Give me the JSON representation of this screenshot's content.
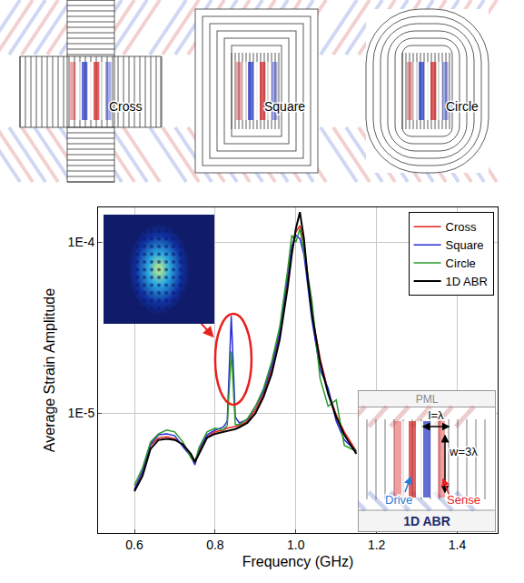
{
  "panels": [
    {
      "label": "Cross",
      "kind": "cross"
    },
    {
      "label": "Square",
      "kind": "square"
    },
    {
      "label": "Circle",
      "kind": "circle"
    }
  ],
  "chart_data": {
    "type": "line",
    "x_label": "Frequency (GHz)",
    "y_label": "Average Strain Amplitude",
    "log": "y",
    "grid": true,
    "legend": "top right",
    "xlim": [
      0.51,
      1.5
    ],
    "xticks": [
      0.6,
      0.8,
      {
        "value": 1,
        "label": "1.0"
      },
      1.2,
      1.4
    ],
    "ylim": [
      2e-06,
      0.00016
    ],
    "yticks": [
      {
        "value": 1e-05,
        "label": "1E-5"
      },
      {
        "value": 0.0001,
        "label": "1E-4"
      }
    ],
    "x": [
      0.6,
      0.62,
      0.64,
      0.66,
      0.68,
      0.7,
      0.72,
      0.74,
      0.75,
      0.76,
      0.78,
      0.8,
      0.82,
      0.83,
      0.84,
      0.85,
      0.86,
      0.88,
      0.9,
      0.92,
      0.94,
      0.96,
      0.98,
      0.99,
      1.0,
      1.01,
      1.02,
      1.03,
      1.04,
      1.06,
      1.08,
      1.1,
      1.12,
      1.15
    ],
    "series": [
      {
        "name": "Cross",
        "color": "#e8201e",
        "values": [
          3.6e-06,
          4.5e-06,
          6.5e-06,
          7.2e-06,
          7.3e-06,
          7.1e-06,
          6.5e-06,
          5.7e-06,
          5.3e-06,
          6e-06,
          7.3e-06,
          7.8e-06,
          8e-06,
          8.2e-06,
          8.3e-06,
          8.4e-06,
          8.5e-06,
          9e-06,
          1.05e-05,
          1.3e-05,
          1.8e-05,
          2.9e-05,
          6e-05,
          9e-05,
          0.000115,
          0.000125,
          0.0001,
          6e-05,
          3.8e-05,
          2.1e-05,
          1.35e-05,
          9.8e-06,
          7.8e-06,
          6e-06
        ]
      },
      {
        "name": "Square",
        "color": "#2b2bd8",
        "values": [
          3.6e-06,
          4.6e-06,
          6.6e-06,
          7.5e-06,
          7.6e-06,
          7.4e-06,
          6.4e-06,
          5.6e-06,
          5e-06,
          6.2e-06,
          7.5e-06,
          8e-06,
          8.3e-06,
          9e-06,
          3.7e-05,
          9.5e-06,
          8.8e-06,
          9.2e-06,
          1.1e-05,
          1.35e-05,
          1.9e-05,
          3e-05,
          6.5e-05,
          9.5e-05,
          0.00011,
          0.000105,
          8.5e-05,
          5.5e-05,
          3.5e-05,
          1.8e-05,
          1.4e-05,
          9e-06,
          7e-06,
          6e-06
        ]
      },
      {
        "name": "Circle",
        "color": "#2a9a2a",
        "values": [
          3.8e-06,
          4.8e-06,
          6.8e-06,
          7.6e-06,
          8e-06,
          7.8e-06,
          6.8e-06,
          5.5e-06,
          5.2e-06,
          6.3e-06,
          7.8e-06,
          8.2e-06,
          8e-06,
          8.5e-06,
          2.3e-05,
          8.6e-06,
          8.6e-06,
          9.3e-06,
          1.1e-05,
          1.4e-05,
          2e-05,
          3.2e-05,
          7e-05,
          0.00011,
          0.0001,
          0.00012,
          9e-05,
          6.5e-05,
          4.5e-05,
          1.6e-05,
          1.1e-05,
          1.2e-05,
          6.5e-06,
          6e-06
        ]
      },
      {
        "name": "1D ABR",
        "color": "#000000",
        "values": [
          3.5e-06,
          4.3e-06,
          6.2e-06,
          7e-06,
          7.1e-06,
          7e-06,
          6.6e-06,
          5.8e-06,
          5.2e-06,
          5.8e-06,
          7.2e-06,
          7.6e-06,
          7.8e-06,
          7.9e-06,
          8e-06,
          8.1e-06,
          8.3e-06,
          8.8e-06,
          1e-05,
          1.25e-05,
          1.7e-05,
          2.7e-05,
          5.5e-05,
          8.5e-05,
          0.00012,
          0.00015,
          0.000105,
          6e-05,
          3.8e-05,
          2e-05,
          1.3e-05,
          9.5e-06,
          7.5e-06,
          5.8e-06
        ]
      }
    ]
  },
  "inset": {
    "pml": "PML",
    "length": "l=λ",
    "width": "w=3λ",
    "drive": "Drive",
    "sense": "Sense",
    "name": "1D ABR"
  }
}
